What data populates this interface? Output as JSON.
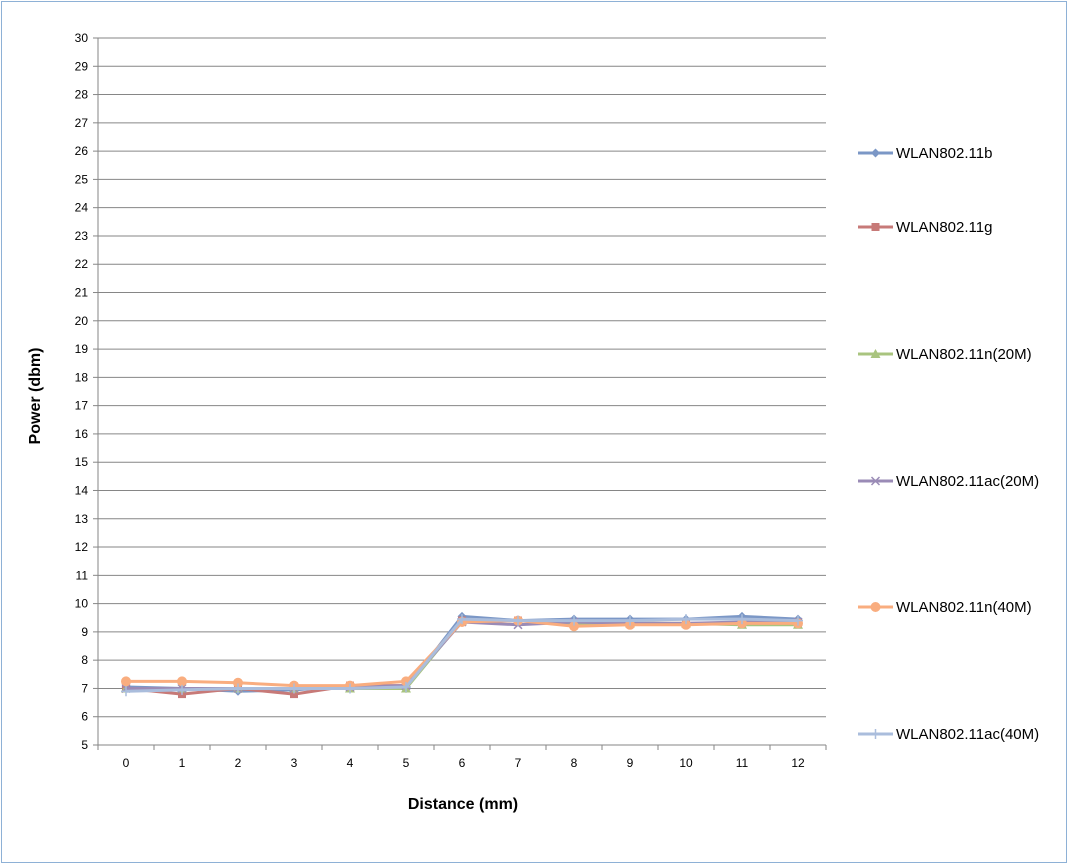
{
  "chart_data": {
    "type": "line",
    "title": "",
    "xlabel": "Distance (mm)",
    "ylabel": "Power (dbm)",
    "x": [
      0,
      1,
      2,
      3,
      4,
      5,
      6,
      7,
      8,
      9,
      10,
      11,
      12
    ],
    "ylim": [
      5,
      30
    ],
    "yticks": [
      5,
      6,
      7,
      8,
      9,
      10,
      11,
      12,
      13,
      14,
      15,
      16,
      17,
      18,
      19,
      20,
      21,
      22,
      23,
      24,
      25,
      26,
      27,
      28,
      29,
      30
    ],
    "grid": "horizontal",
    "legend_position": "right",
    "series": [
      {
        "name": "WLAN802.11b",
        "color": "#7b97c6",
        "marker": "diamond",
        "values": [
          7.05,
          7.0,
          6.9,
          6.95,
          7.1,
          7.0,
          9.55,
          9.4,
          9.45,
          9.45,
          9.45,
          9.55,
          9.45
        ]
      },
      {
        "name": "WLAN802.11g",
        "color": "#c77a78",
        "marker": "square",
        "values": [
          7.0,
          6.8,
          7.0,
          6.8,
          7.1,
          7.1,
          9.4,
          9.4,
          9.3,
          9.3,
          9.3,
          9.3,
          9.3
        ]
      },
      {
        "name": "WLAN802.11n(20M)",
        "color": "#a9c47f",
        "marker": "triangle",
        "values": [
          7.0,
          7.0,
          7.0,
          7.0,
          7.0,
          7.0,
          9.4,
          9.4,
          9.3,
          9.3,
          9.3,
          9.25,
          9.25
        ]
      },
      {
        "name": "WLAN802.11ac(20M)",
        "color": "#9a8bb6",
        "marker": "x",
        "values": [
          7.0,
          7.0,
          7.0,
          7.0,
          7.05,
          7.1,
          9.35,
          9.25,
          9.35,
          9.3,
          9.3,
          9.35,
          9.35
        ]
      },
      {
        "name": "WLAN802.11n(40M)",
        "color": "#f9ad7f",
        "marker": "circle",
        "values": [
          7.25,
          7.25,
          7.2,
          7.1,
          7.1,
          7.25,
          9.35,
          9.4,
          9.2,
          9.25,
          9.25,
          9.3,
          9.3
        ]
      },
      {
        "name": "WLAN802.11ac(40M)",
        "color": "#aabddc",
        "marker": "plus",
        "values": [
          6.9,
          6.95,
          7.0,
          7.0,
          7.0,
          7.05,
          9.45,
          9.4,
          9.4,
          9.4,
          9.45,
          9.45,
          9.4
        ]
      }
    ]
  }
}
